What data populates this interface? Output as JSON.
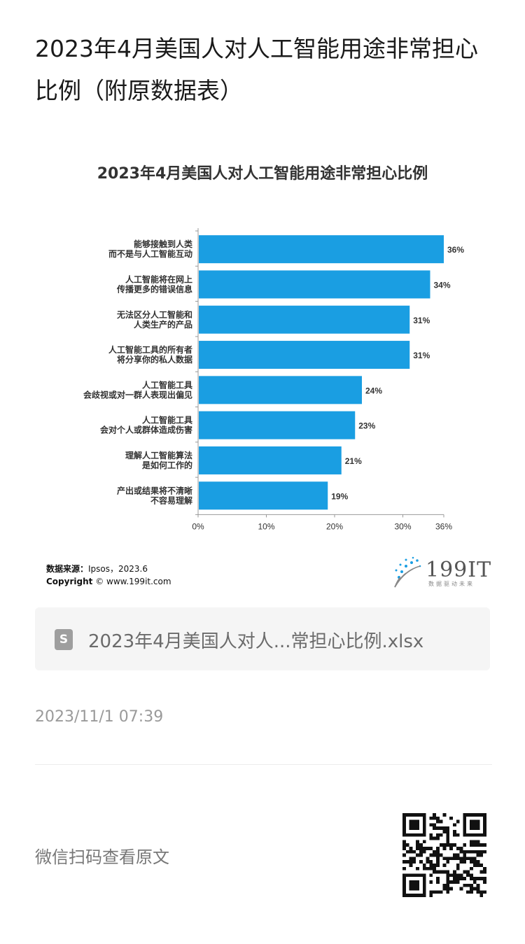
{
  "page_title": "2023年4月美国人对人工智能用途非常担心比例（附原数据表）",
  "chart_data": {
    "type": "bar",
    "orientation": "horizontal",
    "title": "2023年4月美国人对人工智能用途非常担心比例",
    "categories": [
      [
        "能够接触到人类",
        "而不是与人工智能互动"
      ],
      [
        "人工智能将在网上",
        "传播更多的错误信息"
      ],
      [
        "无法区分人工智能和",
        "人类生产的产品"
      ],
      [
        "人工智能工具的所有者",
        "将分享你的私人数据"
      ],
      [
        "人工智能工具",
        "会歧视或对一群人表现出偏见"
      ],
      [
        "人工智能工具",
        "会对个人或群体造成伤害"
      ],
      [
        "理解人工智能算法",
        "是如何工作的"
      ],
      [
        "产出或结果将不清晰",
        "不容易理解"
      ]
    ],
    "values": [
      36,
      34,
      31,
      31,
      24,
      23,
      21,
      19
    ],
    "value_labels": [
      "36%",
      "34%",
      "31%",
      "31%",
      "24%",
      "23%",
      "21%",
      "19%"
    ],
    "xlim": [
      0,
      36
    ],
    "x_ticks": [
      0,
      10,
      20,
      30,
      36
    ],
    "x_tick_labels": [
      "0%",
      "10%",
      "20%",
      "30%",
      "36%"
    ],
    "bar_color": "#1a9ee2",
    "grid": false,
    "legend": "none"
  },
  "source": {
    "label": "数据来源：",
    "text": "Ipsos，2023.6",
    "copyright_label": "Copyright",
    "copyright_text": " © www.199it.com"
  },
  "logo": {
    "text": "199IT",
    "slogan": "数据驱动未来"
  },
  "attachment": {
    "icon": "S",
    "file_name": "2023年4月美国人对人...常担心比例.xlsx"
  },
  "timestamp": "2023/11/1 07:39",
  "qr_label": "微信扫码查看原文"
}
